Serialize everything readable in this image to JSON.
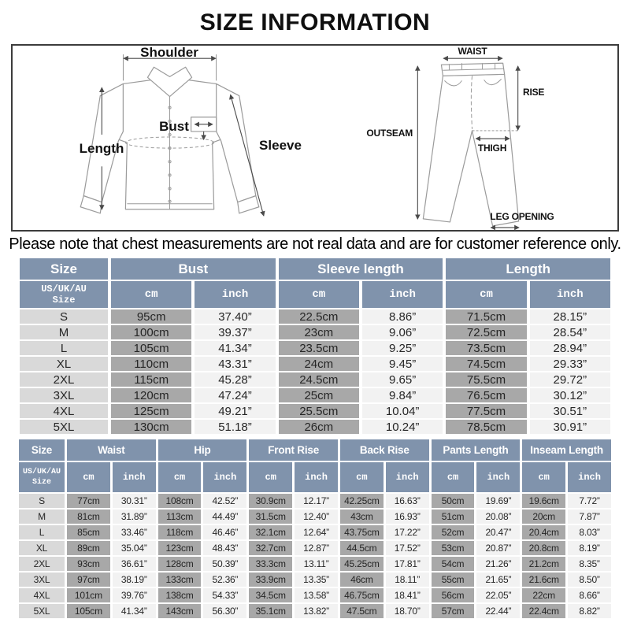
{
  "page": {
    "title": "SIZE INFORMATION",
    "note": "Please note that chest measurements are not real data and are for customer reference only."
  },
  "colors": {
    "header_bg": "#8093ac",
    "size_bg": "#d9d9d9",
    "cm_bg": "#a8a8a8",
    "inch_bg": "#f2f2f2"
  },
  "shirt_diagram": {
    "shoulder": "Shoulder",
    "length": "Length",
    "bust": "Bust",
    "sleeve": "Sleeve"
  },
  "pants_diagram": {
    "waist": "WAIST",
    "rise": "RISE",
    "outseam": "OUTSEAM",
    "thigh": "THIGH",
    "leg_opening": "LEG OPENING"
  },
  "top_table": {
    "groups": [
      "Size",
      "Bust",
      "Sleeve length",
      "Length"
    ],
    "size_subheader": "US/UK/AU\nSize",
    "units": [
      "cm",
      "inch",
      "cm",
      "inch",
      "cm",
      "inch"
    ],
    "rows": [
      [
        "S",
        "95cm",
        "37.40”",
        "22.5cm",
        "8.86”",
        "71.5cm",
        "28.15”"
      ],
      [
        "M",
        "100cm",
        "39.37”",
        "23cm",
        "9.06”",
        "72.5cm",
        "28.54”"
      ],
      [
        "L",
        "105cm",
        "41.34”",
        "23.5cm",
        "9.25”",
        "73.5cm",
        "28.94”"
      ],
      [
        "XL",
        "110cm",
        "43.31”",
        "24cm",
        "9.45”",
        "74.5cm",
        "29.33”"
      ],
      [
        "2XL",
        "115cm",
        "45.28”",
        "24.5cm",
        "9.65”",
        "75.5cm",
        "29.72”"
      ],
      [
        "3XL",
        "120cm",
        "47.24”",
        "25cm",
        "9.84”",
        "76.5cm",
        "30.12”"
      ],
      [
        "4XL",
        "125cm",
        "49.21”",
        "25.5cm",
        "10.04”",
        "77.5cm",
        "30.51”"
      ],
      [
        "5XL",
        "130cm",
        "51.18”",
        "26cm",
        "10.24”",
        "78.5cm",
        "30.91”"
      ]
    ]
  },
  "bottom_table": {
    "groups": [
      "Size",
      "Waist",
      "Hip",
      "Front Rise",
      "Back Rise",
      "Pants Length",
      "Inseam Length"
    ],
    "size_subheader": "US/UK/AU\nSize",
    "units": [
      "cm",
      "inch",
      "cm",
      "inch",
      "cm",
      "inch",
      "cm",
      "inch",
      "cm",
      "inch",
      "cm",
      "inch"
    ],
    "rows": [
      [
        "S",
        "77cm",
        "30.31”",
        "108cm",
        "42.52”",
        "30.9cm",
        "12.17”",
        "42.25cm",
        "16.63”",
        "50cm",
        "19.69”",
        "19.6cm",
        "7.72”"
      ],
      [
        "M",
        "81cm",
        "31.89”",
        "113cm",
        "44.49”",
        "31.5cm",
        "12.40”",
        "43cm",
        "16.93”",
        "51cm",
        "20.08”",
        "20cm",
        "7.87”"
      ],
      [
        "L",
        "85cm",
        "33.46”",
        "118cm",
        "46.46”",
        "32.1cm",
        "12.64”",
        "43.75cm",
        "17.22”",
        "52cm",
        "20.47”",
        "20.4cm",
        "8.03”"
      ],
      [
        "XL",
        "89cm",
        "35.04”",
        "123cm",
        "48.43”",
        "32.7cm",
        "12.87”",
        "44.5cm",
        "17.52”",
        "53cm",
        "20.87”",
        "20.8cm",
        "8.19”"
      ],
      [
        "2XL",
        "93cm",
        "36.61”",
        "128cm",
        "50.39”",
        "33.3cm",
        "13.11”",
        "45.25cm",
        "17.81”",
        "54cm",
        "21.26”",
        "21.2cm",
        "8.35”"
      ],
      [
        "3XL",
        "97cm",
        "38.19”",
        "133cm",
        "52.36”",
        "33.9cm",
        "13.35”",
        "46cm",
        "18.11”",
        "55cm",
        "21.65”",
        "21.6cm",
        "8.50”"
      ],
      [
        "4XL",
        "101cm",
        "39.76”",
        "138cm",
        "54.33”",
        "34.5cm",
        "13.58”",
        "46.75cm",
        "18.41”",
        "56cm",
        "22.05”",
        "22cm",
        "8.66”"
      ],
      [
        "5XL",
        "105cm",
        "41.34”",
        "143cm",
        "56.30”",
        "35.1cm",
        "13.82”",
        "47.5cm",
        "18.70”",
        "57cm",
        "22.44”",
        "22.4cm",
        "8.82”"
      ]
    ]
  }
}
